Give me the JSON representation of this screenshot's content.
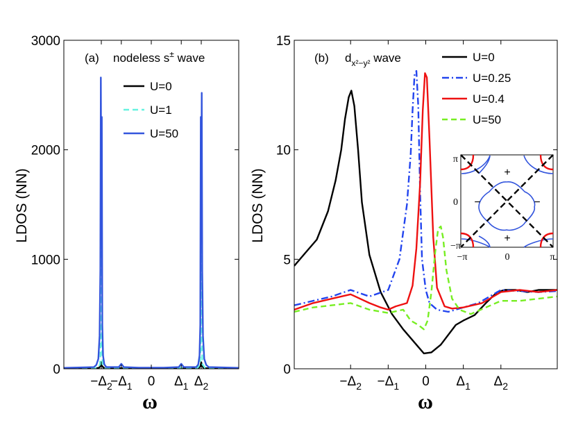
{
  "chart_data": [
    {
      "type": "line",
      "panel": "(a)",
      "annotation": "nodeless s",
      "annotation_sup": "±",
      "annotation_tail": " wave",
      "xlabel": "ω",
      "ylabel": "LDOS (NN)",
      "xlim": [
        -3.5,
        3.5
      ],
      "ylim": [
        0,
        3000
      ],
      "yticks": [
        0,
        1000,
        2000,
        3000
      ],
      "xticks": [
        {
          "x": -2.0,
          "label": "−Δ",
          "sub": "2"
        },
        {
          "x": -1.2,
          "label": "−Δ",
          "sub": "1"
        },
        {
          "x": 0.0,
          "label": "0",
          "sub": ""
        },
        {
          "x": 1.2,
          "label": "Δ",
          "sub": "1"
        },
        {
          "x": 2.0,
          "label": "Δ",
          "sub": "2"
        }
      ],
      "legend_position": "top-right",
      "series": [
        {
          "name": "U=0",
          "color": "#000000",
          "dash": "solid",
          "x": [
            -3.5,
            -2.2,
            -2.1,
            -2.03,
            -2.0,
            -1.97,
            -1.9,
            -1.8,
            1.8,
            1.9,
            1.97,
            2.0,
            2.03,
            2.1,
            2.2,
            3.5
          ],
          "y": [
            4,
            5,
            8,
            25,
            60,
            25,
            8,
            5,
            5,
            8,
            25,
            60,
            25,
            8,
            5,
            4
          ]
        },
        {
          "name": "U=1",
          "color": "#66f2e0",
          "dash": "dashed",
          "x": [
            -3.5,
            -2.15,
            -2.05,
            -2.02,
            -2.0,
            -1.98,
            -1.95,
            -1.85,
            1.85,
            1.95,
            1.98,
            2.0,
            2.02,
            2.05,
            2.15,
            3.5
          ],
          "y": [
            5,
            8,
            40,
            250,
            2280,
            250,
            40,
            8,
            8,
            40,
            250,
            2280,
            250,
            40,
            8,
            5
          ]
        },
        {
          "name": "U=50",
          "color": "#3355dd",
          "dash": "solid",
          "x": [
            -3.5,
            -2.3,
            -2.2,
            -2.12,
            -2.07,
            -2.04,
            -2.02,
            -2.0,
            -1.98,
            -1.96,
            -1.93,
            -1.88,
            -1.8,
            -1.3,
            -1.2,
            -1.1,
            -0.5,
            0.5,
            1.1,
            1.2,
            1.3,
            1.8,
            1.88,
            1.93,
            1.96,
            1.98,
            2.0,
            2.02,
            2.04,
            2.07,
            2.12,
            2.2,
            2.3,
            3.5
          ],
          "y": [
            8,
            15,
            35,
            90,
            300,
            900,
            2660,
            1500,
            2300,
            400,
            120,
            40,
            15,
            15,
            45,
            15,
            10,
            10,
            15,
            45,
            15,
            15,
            40,
            120,
            400,
            2300,
            1500,
            2520,
            900,
            300,
            90,
            35,
            15,
            8
          ]
        }
      ]
    },
    {
      "type": "line",
      "panel": "(b)",
      "annotation": "d",
      "annotation_sub": "x²−y²",
      "annotation_tail": " wave",
      "xlabel": "ω",
      "ylabel": "LDOS (NN)",
      "xlim": [
        -3.5,
        3.5
      ],
      "ylim": [
        0,
        15
      ],
      "yticks": [
        0,
        5,
        10,
        15
      ],
      "xticks": [
        {
          "x": -2.0,
          "label": "−Δ",
          "sub": "2"
        },
        {
          "x": -1.0,
          "label": "−Δ",
          "sub": "1"
        },
        {
          "x": 0.0,
          "label": "0",
          "sub": ""
        },
        {
          "x": 1.0,
          "label": "Δ",
          "sub": "1"
        },
        {
          "x": 2.0,
          "label": "Δ",
          "sub": "2"
        }
      ],
      "legend_position": "top-right",
      "series": [
        {
          "name": "U=0",
          "color": "#000000",
          "dash": "solid",
          "x": [
            -3.5,
            -3.2,
            -2.9,
            -2.6,
            -2.4,
            -2.25,
            -2.15,
            -2.05,
            -1.98,
            -1.9,
            -1.8,
            -1.7,
            -1.5,
            -1.2,
            -0.9,
            -0.6,
            -0.3,
            -0.05,
            0.15,
            0.4,
            0.8,
            1.0,
            1.3,
            1.6,
            1.9,
            2.1,
            2.4,
            2.7,
            3.0,
            3.5
          ],
          "y": [
            4.7,
            5.3,
            5.9,
            7.2,
            8.6,
            10.0,
            11.4,
            12.4,
            12.7,
            12.0,
            10.0,
            7.6,
            5.2,
            3.5,
            2.5,
            1.8,
            1.2,
            0.7,
            0.75,
            1.1,
            2.0,
            2.2,
            2.45,
            3.0,
            3.5,
            3.6,
            3.6,
            3.5,
            3.6,
            3.6
          ]
        },
        {
          "name": "U=0.25",
          "color": "#2244ee",
          "dash": "dashdot",
          "x": [
            -3.5,
            -3.0,
            -2.5,
            -2.0,
            -1.5,
            -1.0,
            -0.7,
            -0.5,
            -0.4,
            -0.35,
            -0.3,
            -0.25,
            -0.2,
            -0.15,
            -0.1,
            0.0,
            0.1,
            0.3,
            0.6,
            1.0,
            1.4,
            2.0,
            2.5,
            3.0,
            3.5
          ],
          "y": [
            2.9,
            3.1,
            3.3,
            3.6,
            3.3,
            3.6,
            5.0,
            7.5,
            9.8,
            11.8,
            13.4,
            13.6,
            12.0,
            8.0,
            5.0,
            3.6,
            3.0,
            2.7,
            2.6,
            2.8,
            3.0,
            3.6,
            3.55,
            3.5,
            3.55
          ]
        },
        {
          "name": "U=0.4",
          "color": "#ee1111",
          "dash": "solid",
          "x": [
            -3.5,
            -3.0,
            -2.5,
            -2.0,
            -1.5,
            -1.2,
            -1.0,
            -0.8,
            -0.5,
            -0.35,
            -0.25,
            -0.15,
            -0.08,
            -0.02,
            0.03,
            0.1,
            0.2,
            0.3,
            0.5,
            0.7,
            1.0,
            1.5,
            2.0,
            2.5,
            3.0,
            3.5
          ],
          "y": [
            2.7,
            3.0,
            3.2,
            3.4,
            3.0,
            2.8,
            2.7,
            2.85,
            3.0,
            3.8,
            5.5,
            8.5,
            11.8,
            13.5,
            13.3,
            10.5,
            6.0,
            3.7,
            2.85,
            2.75,
            2.8,
            3.0,
            3.5,
            3.6,
            3.5,
            3.6
          ]
        },
        {
          "name": "U=50",
          "color": "#77ee22",
          "dash": "dashed",
          "x": [
            -3.5,
            -3.0,
            -2.5,
            -2.0,
            -1.5,
            -1.0,
            -0.6,
            -0.4,
            -0.2,
            -0.05,
            0.05,
            0.15,
            0.25,
            0.33,
            0.4,
            0.46,
            0.55,
            0.7,
            0.9,
            1.2,
            1.6,
            2.0,
            2.5,
            3.0,
            3.5
          ],
          "y": [
            2.6,
            2.8,
            2.9,
            3.0,
            2.7,
            2.55,
            2.7,
            2.2,
            2.0,
            1.8,
            2.2,
            3.5,
            5.3,
            6.4,
            6.5,
            6.0,
            4.5,
            3.2,
            2.7,
            2.5,
            2.8,
            3.1,
            3.1,
            3.2,
            3.3
          ]
        }
      ]
    }
  ],
  "inset": {
    "yticks": [
      "π",
      "0",
      "−π"
    ],
    "xticks": [
      "−π",
      "0",
      "π"
    ],
    "signs": [
      "+",
      "−",
      "−",
      "+"
    ]
  }
}
